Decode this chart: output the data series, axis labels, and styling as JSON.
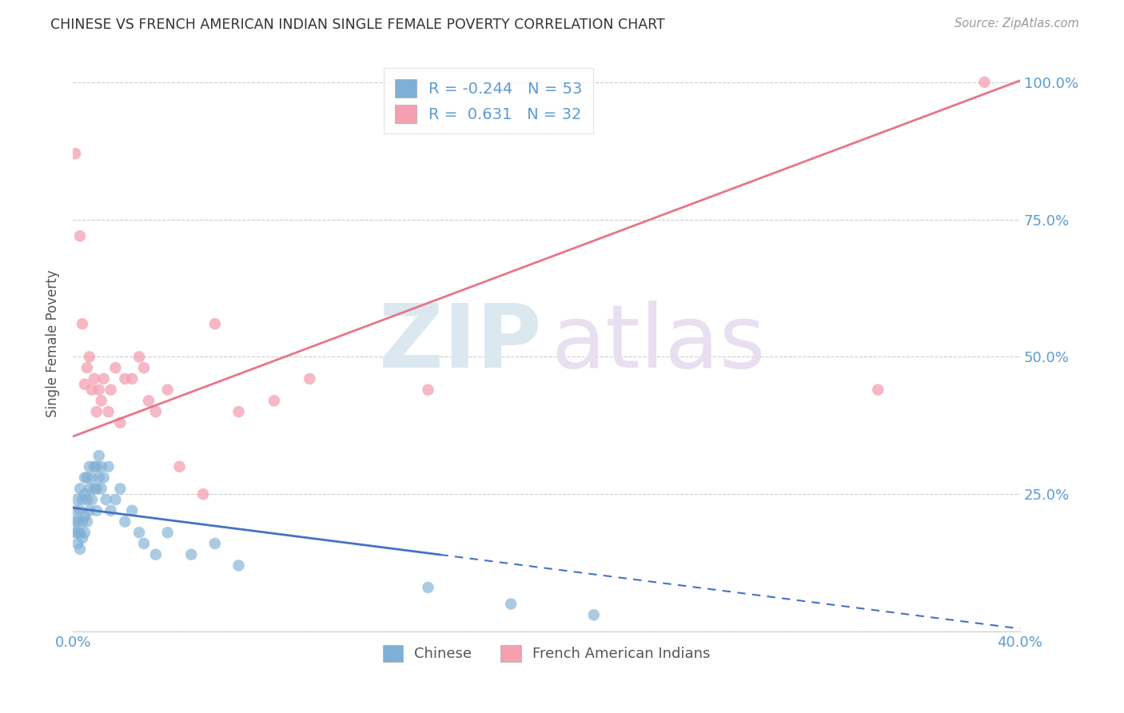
{
  "title": "CHINESE VS FRENCH AMERICAN INDIAN SINGLE FEMALE POVERTY CORRELATION CHART",
  "source": "Source: ZipAtlas.com",
  "ylabel_label": "Single Female Poverty",
  "xlim": [
    0.0,
    0.4
  ],
  "ylim": [
    0.0,
    1.05
  ],
  "chinese_color": "#7fafd4",
  "french_color": "#f4a0b0",
  "chinese_R": -0.244,
  "chinese_N": 53,
  "french_R": 0.631,
  "french_N": 32,
  "chinese_x": [
    0.001,
    0.001,
    0.001,
    0.002,
    0.002,
    0.002,
    0.002,
    0.003,
    0.003,
    0.003,
    0.003,
    0.004,
    0.004,
    0.004,
    0.005,
    0.005,
    0.005,
    0.005,
    0.006,
    0.006,
    0.006,
    0.007,
    0.007,
    0.007,
    0.008,
    0.008,
    0.009,
    0.009,
    0.01,
    0.01,
    0.01,
    0.011,
    0.011,
    0.012,
    0.012,
    0.013,
    0.014,
    0.015,
    0.016,
    0.018,
    0.02,
    0.022,
    0.025,
    0.028,
    0.03,
    0.035,
    0.04,
    0.05,
    0.06,
    0.07,
    0.15,
    0.185,
    0.22
  ],
  "chinese_y": [
    0.18,
    0.2,
    0.22,
    0.16,
    0.18,
    0.2,
    0.24,
    0.15,
    0.18,
    0.22,
    0.26,
    0.17,
    0.2,
    0.24,
    0.18,
    0.21,
    0.25,
    0.28,
    0.2,
    0.24,
    0.28,
    0.22,
    0.26,
    0.3,
    0.24,
    0.28,
    0.26,
    0.3,
    0.22,
    0.26,
    0.3,
    0.28,
    0.32,
    0.26,
    0.3,
    0.28,
    0.24,
    0.3,
    0.22,
    0.24,
    0.26,
    0.2,
    0.22,
    0.18,
    0.16,
    0.14,
    0.18,
    0.14,
    0.16,
    0.12,
    0.08,
    0.05,
    0.03
  ],
  "french_x": [
    0.001,
    0.003,
    0.004,
    0.005,
    0.006,
    0.007,
    0.008,
    0.009,
    0.01,
    0.011,
    0.012,
    0.013,
    0.015,
    0.016,
    0.018,
    0.02,
    0.022,
    0.025,
    0.028,
    0.03,
    0.032,
    0.035,
    0.04,
    0.045,
    0.055,
    0.06,
    0.07,
    0.085,
    0.1,
    0.15,
    0.34,
    0.385
  ],
  "french_y": [
    0.87,
    0.72,
    0.56,
    0.45,
    0.48,
    0.5,
    0.44,
    0.46,
    0.4,
    0.44,
    0.42,
    0.46,
    0.4,
    0.44,
    0.48,
    0.38,
    0.46,
    0.46,
    0.5,
    0.48,
    0.42,
    0.4,
    0.44,
    0.3,
    0.25,
    0.56,
    0.4,
    0.42,
    0.46,
    0.44,
    0.44,
    1.0
  ],
  "grid_color": "#cccccc",
  "title_color": "#333333",
  "axis_label_color": "#5b9bd5",
  "legend_text_color": "#5b9bd5",
  "watermark_color_zip": "#dce8f0",
  "watermark_color_atlas": "#e8dff0",
  "chinese_line_color": "#4472c4",
  "french_line_color": "#e8758a",
  "chinese_line_intercept": 0.225,
  "chinese_line_slope": -0.55,
  "french_line_intercept": 0.355,
  "french_line_slope": 1.62
}
